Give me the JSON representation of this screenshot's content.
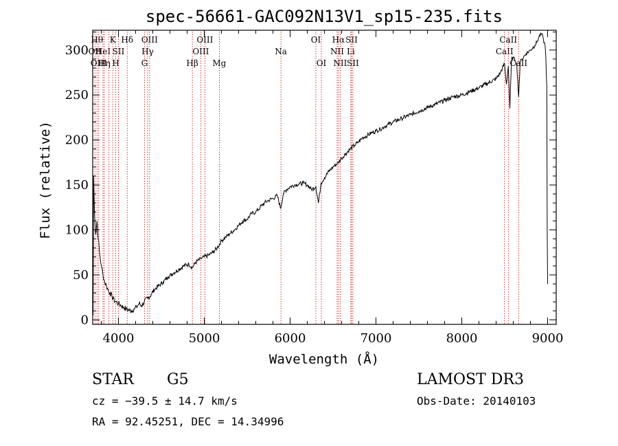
{
  "chart_data": {
    "type": "line",
    "title": "spec-56661-GAC092N13V1_sp15-235.fits",
    "xlabel": "Wavelength (Å)",
    "ylabel": "Flux (relative)",
    "xlim": [
      3700,
      9100
    ],
    "ylim": [
      -5,
      322
    ],
    "x_ticks": [
      4000,
      5000,
      6000,
      7000,
      8000,
      9000
    ],
    "x_tick_labels": [
      "4000",
      "5000",
      "6000",
      "7000",
      "8000",
      "9000"
    ],
    "y_ticks": [
      0,
      50,
      100,
      150,
      200,
      250,
      300
    ],
    "y_tick_labels": [
      "0",
      "50",
      "100",
      "150",
      "200",
      "250",
      "300"
    ],
    "series": [
      {
        "name": "flux",
        "x": [
          3705,
          3710,
          3720,
          3735,
          3750,
          3765,
          3780,
          3800,
          3820,
          3840,
          3860,
          3880,
          3900,
          3925,
          3950,
          3975,
          4000,
          4030,
          4060,
          4090,
          4120,
          4150,
          4180,
          4210,
          4240,
          4270,
          4300,
          4340,
          4380,
          4420,
          4470,
          4520,
          4580,
          4640,
          4700,
          4760,
          4820,
          4861,
          4900,
          4960,
          5000,
          5050,
          5100,
          5150,
          5200,
          5250,
          5300,
          5350,
          5400,
          5450,
          5500,
          5550,
          5600,
          5650,
          5700,
          5750,
          5800,
          5850,
          5890,
          5920,
          5960,
          6000,
          6050,
          6100,
          6150,
          6200,
          6250,
          6300,
          6330,
          6360,
          6400,
          6450,
          6500,
          6563,
          6600,
          6650,
          6700,
          6750,
          6800,
          6850,
          6900,
          6950,
          7000,
          7050,
          7100,
          7200,
          7300,
          7400,
          7500,
          7600,
          7700,
          7800,
          7900,
          8000,
          8100,
          8200,
          8300,
          8400,
          8450,
          8498,
          8520,
          8542,
          8560,
          8580,
          8600,
          8620,
          8640,
          8662,
          8680,
          8700,
          8750,
          8800,
          8850,
          8880,
          8900,
          8930,
          8950,
          8970,
          8980,
          8990,
          8995,
          9000
        ],
        "values": [
          5,
          160,
          120,
          95,
          110,
          90,
          75,
          60,
          50,
          42,
          38,
          33,
          30,
          26,
          22,
          20,
          18,
          16,
          14,
          12,
          11,
          10,
          12,
          14,
          18,
          16,
          20,
          24,
          28,
          34,
          38,
          42,
          48,
          52,
          56,
          60,
          62,
          58,
          64,
          68,
          70,
          72,
          75,
          80,
          88,
          92,
          96,
          100,
          105,
          110,
          112,
          118,
          120,
          125,
          130,
          133,
          135,
          138,
          124,
          140,
          145,
          148,
          150,
          151,
          152,
          150,
          145,
          148,
          130,
          152,
          158,
          165,
          170,
          175,
          180,
          185,
          190,
          194,
          198,
          203,
          205,
          208,
          210,
          212,
          215,
          220,
          224,
          228,
          232,
          236,
          240,
          244,
          248,
          250,
          254,
          258,
          263,
          268,
          275,
          285,
          262,
          282,
          235,
          290,
          292,
          288,
          285,
          248,
          286,
          290,
          296,
          300,
          305,
          310,
          315,
          318,
          312,
          305,
          290,
          260,
          100,
          40
        ]
      }
    ],
    "lines": [
      {
        "x": 3726,
        "label": "OII",
        "row": 1
      },
      {
        "x": 3750,
        "label": "Hθ",
        "row": 0
      },
      {
        "x": 3770,
        "label": "OIII",
        "row": 2
      },
      {
        "x": 3820,
        "label": "HeI",
        "row": 1
      },
      {
        "x": 3835,
        "label": "Hη",
        "row": 2
      },
      {
        "x": 3889,
        "label": "",
        "row": 0
      },
      {
        "x": 3934,
        "label": "K",
        "row": 0
      },
      {
        "x": 3969,
        "label": "H",
        "row": 2
      },
      {
        "x": 4000,
        "label": "SII",
        "row": 1
      },
      {
        "x": 4102,
        "label": "Hδ",
        "row": 0
      },
      {
        "x": 4340,
        "label": "Hγ",
        "row": 1
      },
      {
        "x": 4304,
        "label": "G",
        "row": 2
      },
      {
        "x": 4363,
        "label": "OIII",
        "row": 0
      },
      {
        "x": 4861,
        "label": "Hβ",
        "row": 2
      },
      {
        "x": 4959,
        "label": "OIII",
        "row": 1
      },
      {
        "x": 5007,
        "label": "OIII",
        "row": 0
      },
      {
        "x": 5175,
        "label": "Mg",
        "row": 2
      },
      {
        "x": 5893,
        "label": "Na",
        "row": 1
      },
      {
        "x": 6300,
        "label": "OI",
        "row": 0
      },
      {
        "x": 6364,
        "label": "OI",
        "row": 2
      },
      {
        "x": 6548,
        "label": "NII",
        "row": 1
      },
      {
        "x": 6563,
        "label": "Hα",
        "row": 0
      },
      {
        "x": 6583,
        "label": "NII",
        "row": 2
      },
      {
        "x": 6707,
        "label": "Li",
        "row": 1
      },
      {
        "x": 6716,
        "label": "SII",
        "row": 0
      },
      {
        "x": 6731,
        "label": "SII",
        "row": 2
      },
      {
        "x": 8498,
        "label": "CaII",
        "row": 1
      },
      {
        "x": 8542,
        "label": "CaII",
        "row": 0
      },
      {
        "x": 8662,
        "label": "CaII",
        "row": 2
      }
    ]
  },
  "info": {
    "class_label": "STAR",
    "subclass": "G5",
    "survey": "LAMOST DR3",
    "redshift_line": "cz = −39.5 ± 14.7 km/s",
    "obs_date_line": "Obs-Date: 20140103",
    "coords_line": "RA =  92.45251, DEC =  14.34996"
  }
}
